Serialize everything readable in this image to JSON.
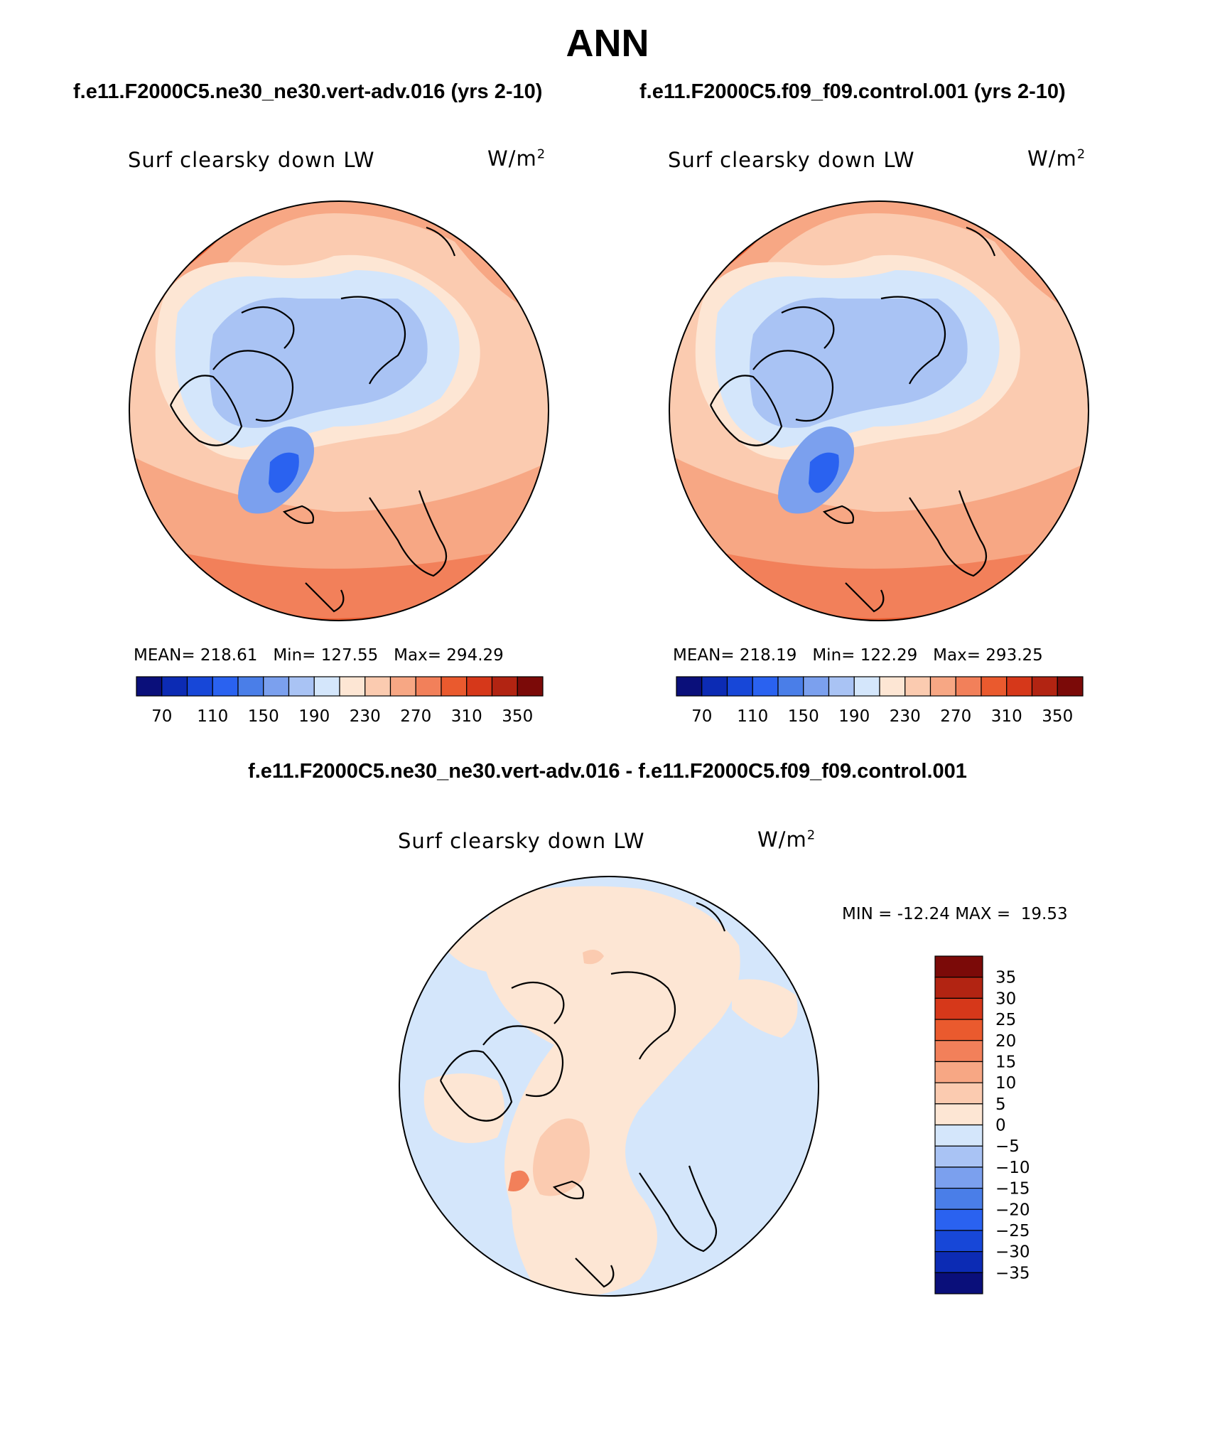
{
  "season": "ANN",
  "panels": {
    "test": {
      "case": "f.e11.F2000C5.ne30_ne30.vert-adv.016 (yrs 2-10)",
      "variable": "Surf clearsky down LW",
      "units": "W/m",
      "units_exp": "2",
      "mean_label": "MEAN=",
      "mean": "218.61",
      "min_label": "Min=",
      "min": "127.55",
      "max_label": "Max=",
      "max": "294.29"
    },
    "control": {
      "case": "f.e11.F2000C5.f09_f09.control.001 (yrs 2-10)",
      "variable": "Surf clearsky down LW",
      "units": "W/m",
      "units_exp": "2",
      "mean_label": "MEAN=",
      "mean": "218.19",
      "min_label": "Min=",
      "min": "122.29",
      "max_label": "Max=",
      "max": "293.25"
    },
    "difference": {
      "case": "f.e11.F2000C5.ne30_ne30.vert-adv.016 - f.e11.F2000C5.f09_f09.control.001",
      "variable": "Surf clearsky down LW",
      "units": "W/m",
      "units_exp": "2",
      "min_label": "MIN =",
      "min": "-12.24",
      "max_label": "MAX =",
      "max": "19.53"
    }
  },
  "chart_data": [
    {
      "type": "heatmap",
      "title": "Surf clearsky down LW",
      "subtitle": "f.e11.F2000C5.ne30_ne30.vert-adv.016 (yrs 2-10)",
      "projection": "north polar stereographic",
      "units": "W/m2",
      "colorbar_levels": [
        70,
        90,
        110,
        130,
        150,
        170,
        190,
        210,
        230,
        250,
        270,
        290,
        310,
        330,
        350
      ],
      "colorbar_tick_labels": [
        "70",
        "110",
        "150",
        "190",
        "230",
        "270",
        "310",
        "350"
      ],
      "colorbar_colors": [
        "#0a0f7a",
        "#0c2bb4",
        "#1747d8",
        "#2a62f0",
        "#4a7ee8",
        "#7ba0ee",
        "#a9c3f4",
        "#d4e6fb",
        "#fde6d4",
        "#fbcbb0",
        "#f7a784",
        "#f2805a",
        "#ea5a2e",
        "#d6381a",
        "#b22412",
        "#7b0a08"
      ],
      "mean": 218.61,
      "min": 127.55,
      "max": 294.29
    },
    {
      "type": "heatmap",
      "title": "Surf clearsky down LW",
      "subtitle": "f.e11.F2000C5.f09_f09.control.001 (yrs 2-10)",
      "projection": "north polar stereographic",
      "units": "W/m2",
      "colorbar_levels": [
        70,
        90,
        110,
        130,
        150,
        170,
        190,
        210,
        230,
        250,
        270,
        290,
        310,
        330,
        350
      ],
      "colorbar_tick_labels": [
        "70",
        "110",
        "150",
        "190",
        "230",
        "270",
        "310",
        "350"
      ],
      "colorbar_colors": [
        "#0a0f7a",
        "#0c2bb4",
        "#1747d8",
        "#2a62f0",
        "#4a7ee8",
        "#7ba0ee",
        "#a9c3f4",
        "#d4e6fb",
        "#fde6d4",
        "#fbcbb0",
        "#f7a784",
        "#f2805a",
        "#ea5a2e",
        "#d6381a",
        "#b22412",
        "#7b0a08"
      ],
      "mean": 218.19,
      "min": 122.29,
      "max": 293.25
    },
    {
      "type": "heatmap",
      "title": "Surf clearsky down LW",
      "subtitle": "f.e11.F2000C5.ne30_ne30.vert-adv.016 - f.e11.F2000C5.f09_f09.control.001",
      "projection": "north polar stereographic",
      "units": "W/m2",
      "colorbar_levels": [
        -35,
        -30,
        -25,
        -20,
        -15,
        -10,
        -5,
        0,
        5,
        10,
        15,
        20,
        25,
        30,
        35
      ],
      "colorbar_tick_labels": [
        "35",
        "30",
        "25",
        "20",
        "15",
        "10",
        "5",
        "0",
        "−5",
        "−10",
        "−15",
        "−20",
        "−25",
        "−30",
        "−35"
      ],
      "colorbar_colors": [
        "#0a0f7a",
        "#0c2bb4",
        "#1747d8",
        "#2a62f0",
        "#4a7ee8",
        "#7ba0ee",
        "#a9c3f4",
        "#d4e6fb",
        "#fde6d4",
        "#fbcbb0",
        "#f7a784",
        "#f2805a",
        "#ea5a2e",
        "#d6381a",
        "#b22412",
        "#7b0a08"
      ],
      "min": -12.24,
      "max": 19.53
    }
  ]
}
